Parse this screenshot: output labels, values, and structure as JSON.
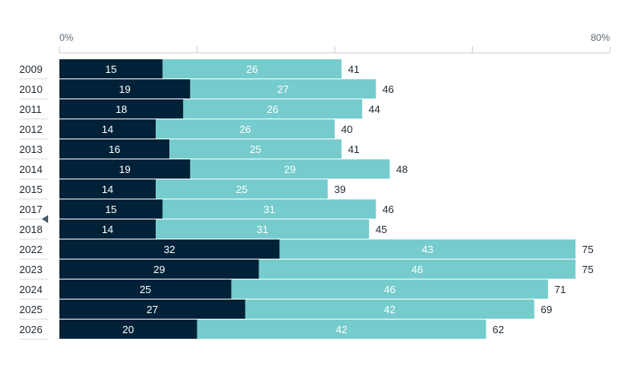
{
  "chart_data": {
    "type": "bar",
    "orientation": "horizontal",
    "stacked": true,
    "categories": [
      "2009",
      "2010",
      "2011",
      "2012",
      "2013",
      "2014",
      "2015",
      "2017",
      "2018",
      "2022",
      "2023",
      "2024",
      "2025",
      "2026"
    ],
    "series": [
      {
        "values": [
          15,
          19,
          18,
          14,
          16,
          19,
          14,
          15,
          14,
          32,
          29,
          25,
          27,
          20
        ],
        "color": "#002238"
      },
      {
        "values": [
          26,
          27,
          26,
          26,
          25,
          29,
          25,
          31,
          31,
          43,
          46,
          46,
          42,
          42
        ],
        "color": "#76cccd"
      }
    ],
    "totals": [
      41,
      46,
      44,
      40,
      41,
      48,
      39,
      46,
      45,
      75,
      75,
      71,
      69,
      62
    ],
    "xlim": [
      0,
      80
    ],
    "x_tick_labels": [
      "0%",
      "",
      "",
      "",
      "80%"
    ],
    "x_ticks": [
      0,
      20,
      40,
      60,
      80
    ],
    "grid": false,
    "highlight_marker_category": "2017",
    "colors": {
      "axis": "#c8ccd0",
      "separator": "#d9dcdf",
      "marker": "#4a5a68"
    }
  }
}
